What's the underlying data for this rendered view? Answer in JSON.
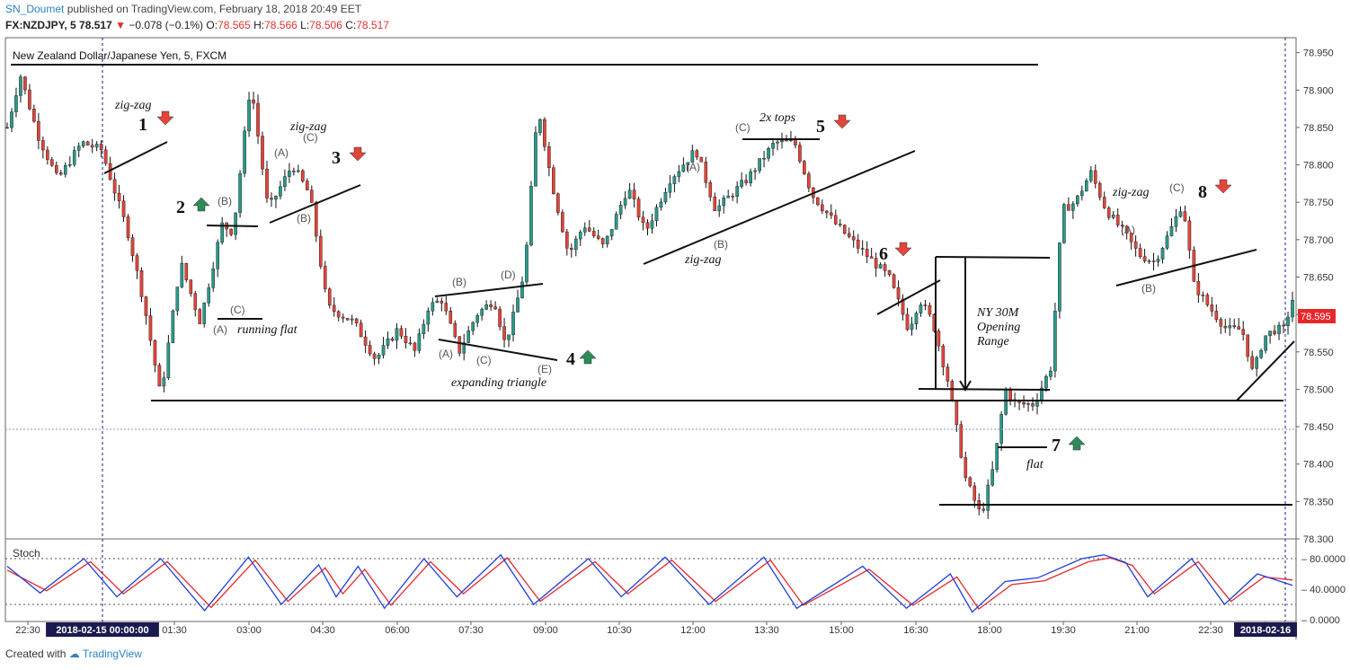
{
  "header": {
    "user": "SN_Doumet",
    "published": "published on TradingView.com, February 18, 2018 20:49 EET",
    "symbol_line": "FX:NZDJPY, 5",
    "last": "78.517",
    "change": "−0.078 (−0.1%)",
    "o_label": "O:",
    "o": "78.565",
    "h_label": "H:",
    "h": "78.566",
    "l_label": "L:",
    "l": "78.506",
    "c_label": "C:",
    "c": "78.517"
  },
  "footer": {
    "created": "Created with",
    "brand": "TradingView"
  },
  "colors": {
    "up": "#2b9a8a",
    "down": "#e2453a",
    "k_line": "#1f3fd8",
    "d_line": "#e8272b",
    "price_badge": "#e8272b",
    "dark_label": "#1a1a4e"
  },
  "chart_data": {
    "type": "candlestick",
    "title": "New Zealand Dollar/Japanese Yen, 5, FXCM",
    "ylim": [
      78.3,
      78.97
    ],
    "y_ticks": [
      "78.950",
      "78.900",
      "78.850",
      "78.800",
      "78.750",
      "78.700",
      "78.650",
      "78.600",
      "78.550",
      "78.500",
      "78.450",
      "78.400",
      "78.350",
      "78.300"
    ],
    "last_price": "78.595",
    "x_ticks": [
      "22:30",
      "2018-02-15 00:00:00",
      "01:30",
      "03:00",
      "04:30",
      "06:00",
      "07:30",
      "09:00",
      "10:30",
      "12:00",
      "13:30",
      "15:00",
      "16:30",
      "18:00",
      "19:30",
      "21:00",
      "22:30",
      "2018-02-16"
    ],
    "path": [
      [
        0,
        78.85
      ],
      [
        6,
        78.92
      ],
      [
        14,
        78.84
      ],
      [
        23,
        78.78
      ],
      [
        34,
        78.83
      ],
      [
        43,
        78.82
      ],
      [
        55,
        78.71
      ],
      [
        62,
        78.62
      ],
      [
        70,
        78.49
      ],
      [
        79,
        78.67
      ],
      [
        88,
        78.59
      ],
      [
        98,
        78.72
      ],
      [
        103,
        78.71
      ],
      [
        111,
        78.91
      ],
      [
        119,
        78.74
      ],
      [
        130,
        78.8
      ],
      [
        138,
        78.76
      ],
      [
        146,
        78.61
      ],
      [
        158,
        78.59
      ],
      [
        168,
        78.54
      ],
      [
        178,
        78.58
      ],
      [
        186,
        78.55
      ],
      [
        192,
        78.61
      ],
      [
        198,
        78.62
      ],
      [
        206,
        78.55
      ],
      [
        214,
        78.6
      ],
      [
        222,
        78.62
      ],
      [
        227,
        78.56
      ],
      [
        231,
        78.6
      ],
      [
        236,
        78.66
      ],
      [
        242,
        78.88
      ],
      [
        248,
        78.78
      ],
      [
        256,
        78.68
      ],
      [
        263,
        78.72
      ],
      [
        272,
        78.69
      ],
      [
        283,
        78.77
      ],
      [
        291,
        78.71
      ],
      [
        302,
        78.78
      ],
      [
        314,
        78.82
      ],
      [
        323,
        78.74
      ],
      [
        337,
        78.78
      ],
      [
        350,
        78.83
      ],
      [
        359,
        78.83
      ],
      [
        367,
        78.76
      ],
      [
        378,
        78.72
      ],
      [
        388,
        78.69
      ],
      [
        395,
        78.67
      ],
      [
        402,
        78.65
      ],
      [
        411,
        78.58
      ],
      [
        416,
        78.62
      ],
      [
        422,
        78.59
      ],
      [
        429,
        78.51
      ],
      [
        437,
        78.38
      ],
      [
        444,
        78.33
      ],
      [
        450,
        78.4
      ],
      [
        455,
        78.5
      ],
      [
        460,
        78.48
      ],
      [
        468,
        78.48
      ],
      [
        476,
        78.53
      ],
      [
        481,
        78.74
      ],
      [
        487,
        78.75
      ],
      [
        494,
        78.79
      ],
      [
        501,
        78.74
      ],
      [
        509,
        78.71
      ],
      [
        516,
        78.68
      ],
      [
        523,
        78.67
      ],
      [
        530,
        78.71
      ],
      [
        536,
        78.75
      ],
      [
        541,
        78.64
      ],
      [
        548,
        78.61
      ],
      [
        556,
        78.58
      ],
      [
        563,
        78.58
      ],
      [
        568,
        78.52
      ],
      [
        573,
        78.57
      ],
      [
        578,
        78.58
      ],
      [
        582,
        78.58
      ],
      [
        586,
        78.62
      ]
    ],
    "stoch_k": [
      [
        0,
        70
      ],
      [
        15,
        35
      ],
      [
        35,
        80
      ],
      [
        50,
        30
      ],
      [
        70,
        80
      ],
      [
        90,
        12
      ],
      [
        110,
        82
      ],
      [
        125,
        20
      ],
      [
        142,
        72
      ],
      [
        150,
        30
      ],
      [
        160,
        70
      ],
      [
        172,
        15
      ],
      [
        190,
        80
      ],
      [
        205,
        30
      ],
      [
        225,
        85
      ],
      [
        240,
        20
      ],
      [
        265,
        80
      ],
      [
        280,
        30
      ],
      [
        300,
        82
      ],
      [
        320,
        20
      ],
      [
        345,
        82
      ],
      [
        360,
        15
      ],
      [
        390,
        70
      ],
      [
        410,
        15
      ],
      [
        430,
        60
      ],
      [
        440,
        10
      ],
      [
        455,
        50
      ],
      [
        470,
        55
      ],
      [
        490,
        80
      ],
      [
        500,
        85
      ],
      [
        510,
        75
      ],
      [
        520,
        30
      ],
      [
        540,
        80
      ],
      [
        555,
        20
      ],
      [
        570,
        60
      ],
      [
        586,
        45
      ]
    ],
    "stoch_d": [
      [
        0,
        65
      ],
      [
        18,
        38
      ],
      [
        38,
        76
      ],
      [
        53,
        34
      ],
      [
        73,
        76
      ],
      [
        93,
        16
      ],
      [
        113,
        78
      ],
      [
        128,
        24
      ],
      [
        145,
        68
      ],
      [
        153,
        34
      ],
      [
        163,
        66
      ],
      [
        175,
        19
      ],
      [
        193,
        76
      ],
      [
        208,
        34
      ],
      [
        228,
        81
      ],
      [
        243,
        24
      ],
      [
        268,
        76
      ],
      [
        283,
        34
      ],
      [
        303,
        78
      ],
      [
        323,
        24
      ],
      [
        348,
        78
      ],
      [
        363,
        19
      ],
      [
        393,
        66
      ],
      [
        413,
        19
      ],
      [
        433,
        56
      ],
      [
        443,
        14
      ],
      [
        458,
        46
      ],
      [
        473,
        51
      ],
      [
        493,
        76
      ],
      [
        503,
        81
      ],
      [
        513,
        71
      ],
      [
        523,
        34
      ],
      [
        543,
        76
      ],
      [
        558,
        24
      ],
      [
        573,
        56
      ],
      [
        586,
        52
      ]
    ],
    "stoch_ticks": [
      "80.0000",
      "40.0000",
      "0.0000"
    ],
    "stoch_label": "Stoch",
    "annotations": {
      "zz1": "zig-zag",
      "n1": "1",
      "n2": "2",
      "zz3": "zig-zag",
      "n3": "3",
      "n4": "4",
      "exp_tri": "expanding triangle",
      "zz_mid": "zig-zag",
      "tops": "2x tops",
      "n5": "5",
      "n6": "6",
      "nyor1": "NY 30M",
      "nyor2": "Opening",
      "nyor3": "Range",
      "n7": "7",
      "flat": "flat",
      "zz8": "zig-zag",
      "n8": "8",
      "running_flat": "running flat",
      "wA": "(A)",
      "wB": "(B)",
      "wC": "(C)",
      "wD": "(D)",
      "wE": "(E)"
    }
  }
}
